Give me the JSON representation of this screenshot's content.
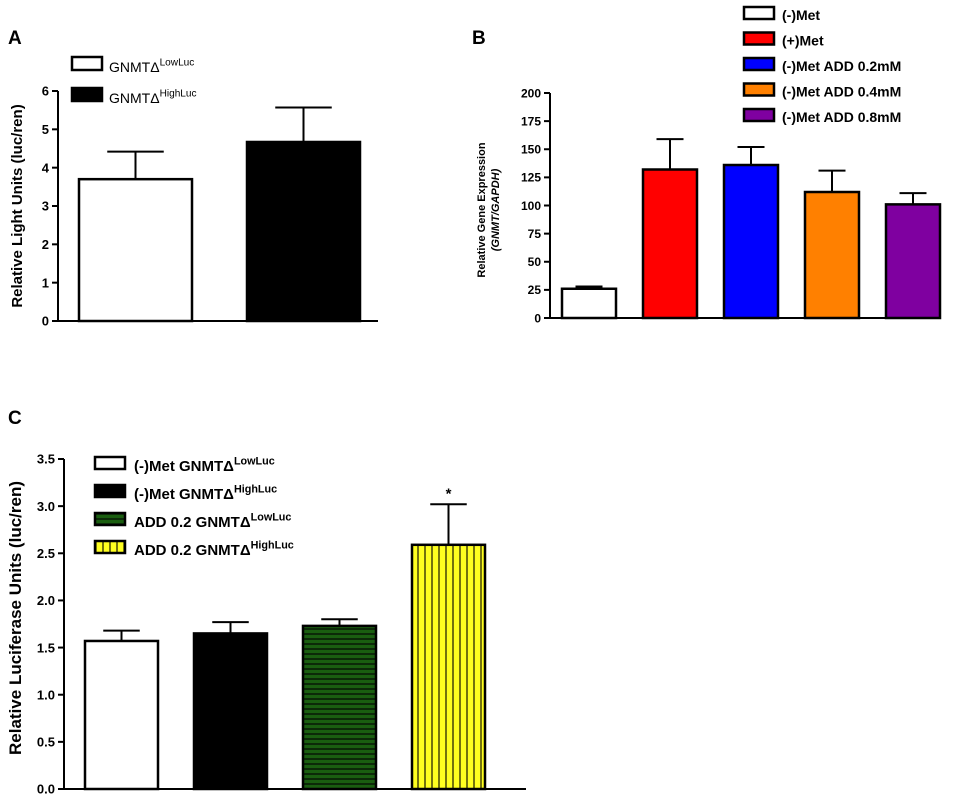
{
  "panels": {
    "a": {
      "letter": "A"
    },
    "b": {
      "letter": "B"
    },
    "c": {
      "letter": "C",
      "significance": "*"
    }
  },
  "chart_data": [
    {
      "panel": "A",
      "type": "bar",
      "ylabel": "Relative Light Units (luc/ren)",
      "ylim": [
        0,
        6
      ],
      "yticks": [
        0,
        1,
        2,
        3,
        4,
        5,
        6
      ],
      "grid": false,
      "legend_position": "top-left",
      "series": [
        {
          "name": "GNMTΔ",
          "name_superscript": "LowLuc",
          "value": 3.7,
          "error": 0.72,
          "color": "#ffffff",
          "pattern": "none"
        },
        {
          "name": "GNMTΔ",
          "name_superscript": "HighLuc",
          "value": 4.67,
          "error": 0.9,
          "color": "#000000",
          "pattern": "none"
        }
      ]
    },
    {
      "panel": "B",
      "type": "bar",
      "ylabel_line1": "Relative Gene Expression",
      "ylabel_line2": "(GNMT/GAPDH)",
      "ylim": [
        0,
        200
      ],
      "yticks": [
        0,
        25,
        50,
        75,
        100,
        125,
        150,
        175,
        200
      ],
      "grid": false,
      "legend_position": "top-right",
      "series": [
        {
          "name": "(-)Met",
          "value": 26,
          "error": 2,
          "color": "#ffffff"
        },
        {
          "name": "(+)Met",
          "value": 132,
          "error": 27,
          "color": "#ff0000"
        },
        {
          "name": "(-)Met ADD 0.2mM",
          "value": 136,
          "error": 16,
          "color": "#0000ff"
        },
        {
          "name": "(-)Met ADD 0.4mM",
          "value": 112,
          "error": 19,
          "color": "#ff8000"
        },
        {
          "name": "(-)Met ADD 0.8mM",
          "value": 101,
          "error": 10,
          "color": "#7f00a0"
        }
      ]
    },
    {
      "panel": "C",
      "type": "bar",
      "ylabel": "Relative Luciferase Units (luc/ren)",
      "ylim": [
        0,
        3.5
      ],
      "yticks": [
        "0.0",
        "0.5",
        "1.0",
        "1.5",
        "2.0",
        "2.5",
        "3.0",
        "3.5"
      ],
      "grid": false,
      "legend_position": "top-left",
      "series": [
        {
          "name": "(-)Met GNMTΔ",
          "name_superscript": "LowLuc",
          "value": 1.57,
          "error": 0.11,
          "color": "#ffffff",
          "pattern": "none"
        },
        {
          "name": "(-)Met GNMTΔ",
          "name_superscript": "HighLuc",
          "value": 1.65,
          "error": 0.12,
          "color": "#000000",
          "pattern": "none"
        },
        {
          "name": "ADD 0.2 GNMTΔ",
          "name_superscript": "LowLuc",
          "value": 1.73,
          "error": 0.07,
          "color": "#1a5e10",
          "pattern": "horizontal-stripes"
        },
        {
          "name": "ADD 0.2 GNMTΔ",
          "name_superscript": "HighLuc",
          "value": 2.59,
          "error": 0.43,
          "color": "#ffff20",
          "pattern": "vertical-stripes"
        }
      ]
    }
  ]
}
